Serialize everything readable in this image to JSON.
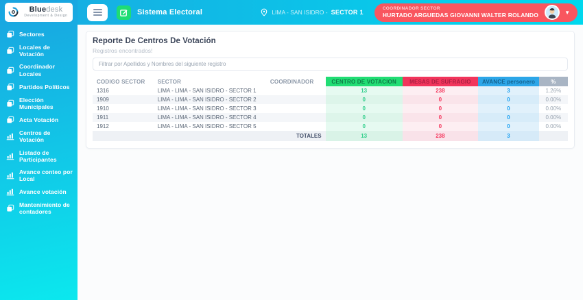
{
  "sidebar": {
    "logo": {
      "brand_bold": "Blue",
      "brand_light": "desk",
      "tagline": "Development & Design"
    },
    "items": [
      {
        "label": "Sectores",
        "icon": "copy-icon"
      },
      {
        "label": "Locales de Votación",
        "icon": "copy-icon"
      },
      {
        "label": "Coordinador Locales",
        "icon": "copy-icon"
      },
      {
        "label": "Partidos Políticos",
        "icon": "copy-icon"
      },
      {
        "label": "Elección Municipales",
        "icon": "copy-icon"
      },
      {
        "label": "Acta Votación",
        "icon": "copy-icon"
      },
      {
        "label": "Centros de Votación",
        "icon": "bar-chart-icon"
      },
      {
        "label": "Listado de Participantes",
        "icon": "bar-chart-icon"
      },
      {
        "label": "Avance conteo por Local",
        "icon": "bar-chart-icon"
      },
      {
        "label": "Avance votación",
        "icon": "bar-chart-icon"
      },
      {
        "label": "Mantenimiento de contadores",
        "icon": "copy-icon"
      }
    ]
  },
  "header": {
    "app_title": "Sistema Electoral",
    "location_text": "LIMA - SAN ISIDRO -",
    "location_sector": "SECTOR 1",
    "user_badge": {
      "role": "COORDINADOR SECTOR",
      "name": "HURTADO ARGUEDAS GIOVANNI WALTER ROLANDO"
    }
  },
  "report": {
    "title": "Reporte De Centros De Votación",
    "subtitle": "Registros encontrados!",
    "filter_placeholder": "Filtrar por Apellidos y Nombres del siguiente registro"
  },
  "table": {
    "columns": {
      "codigo": "CODIGO SECTOR",
      "sector": "SECTOR",
      "coordinador": "COORDINADOR",
      "centro": "CENTRO DE VOTACION",
      "mesas": "MESAS DE SUFRAGIO",
      "avance": "AVANCE personero",
      "pct": "%"
    },
    "rows": [
      {
        "codigo": "1316",
        "sector": "LIMA - LIMA - SAN ISIDRO - SECTOR 1",
        "coordinador": "",
        "centro": "13",
        "mesas": "238",
        "avance": "3",
        "pct": "1.26%"
      },
      {
        "codigo": "1909",
        "sector": "LIMA - LIMA - SAN ISIDRO - SECTOR 2",
        "coordinador": "",
        "centro": "0",
        "mesas": "0",
        "avance": "0",
        "pct": "0.00%"
      },
      {
        "codigo": "1910",
        "sector": "LIMA - LIMA - SAN ISIDRO - SECTOR 3",
        "coordinador": "",
        "centro": "0",
        "mesas": "0",
        "avance": "0",
        "pct": "0.00%"
      },
      {
        "codigo": "1911",
        "sector": "LIMA - LIMA - SAN ISIDRO - SECTOR 4",
        "coordinador": "",
        "centro": "0",
        "mesas": "0",
        "avance": "0",
        "pct": "0.00%"
      },
      {
        "codigo": "1912",
        "sector": "LIMA - LIMA - SAN ISIDRO - SECTOR 5",
        "coordinador": "",
        "centro": "0",
        "mesas": "0",
        "avance": "0",
        "pct": "0.00%"
      }
    ],
    "totals": {
      "label": "TOTALES",
      "centro": "13",
      "mesas": "238",
      "avance": "3",
      "pct": ""
    }
  },
  "colors": {
    "sidebar_gradient_top": "#19a3e0",
    "sidebar_gradient_bottom": "#0be8ee",
    "header_gradient_left": "#1aa9e1",
    "header_gradient_right": "#00d8ee",
    "badge_red": "#f9565f",
    "accent_green": "#2dce89",
    "accent_red": "#f5365c",
    "accent_blue": "#1da1f2",
    "header_green_bg": "#21dd74",
    "header_red_bg": "#f1355c",
    "header_blue_bg": "#2ca6e8",
    "header_gray_bg": "#a9b5c4"
  }
}
